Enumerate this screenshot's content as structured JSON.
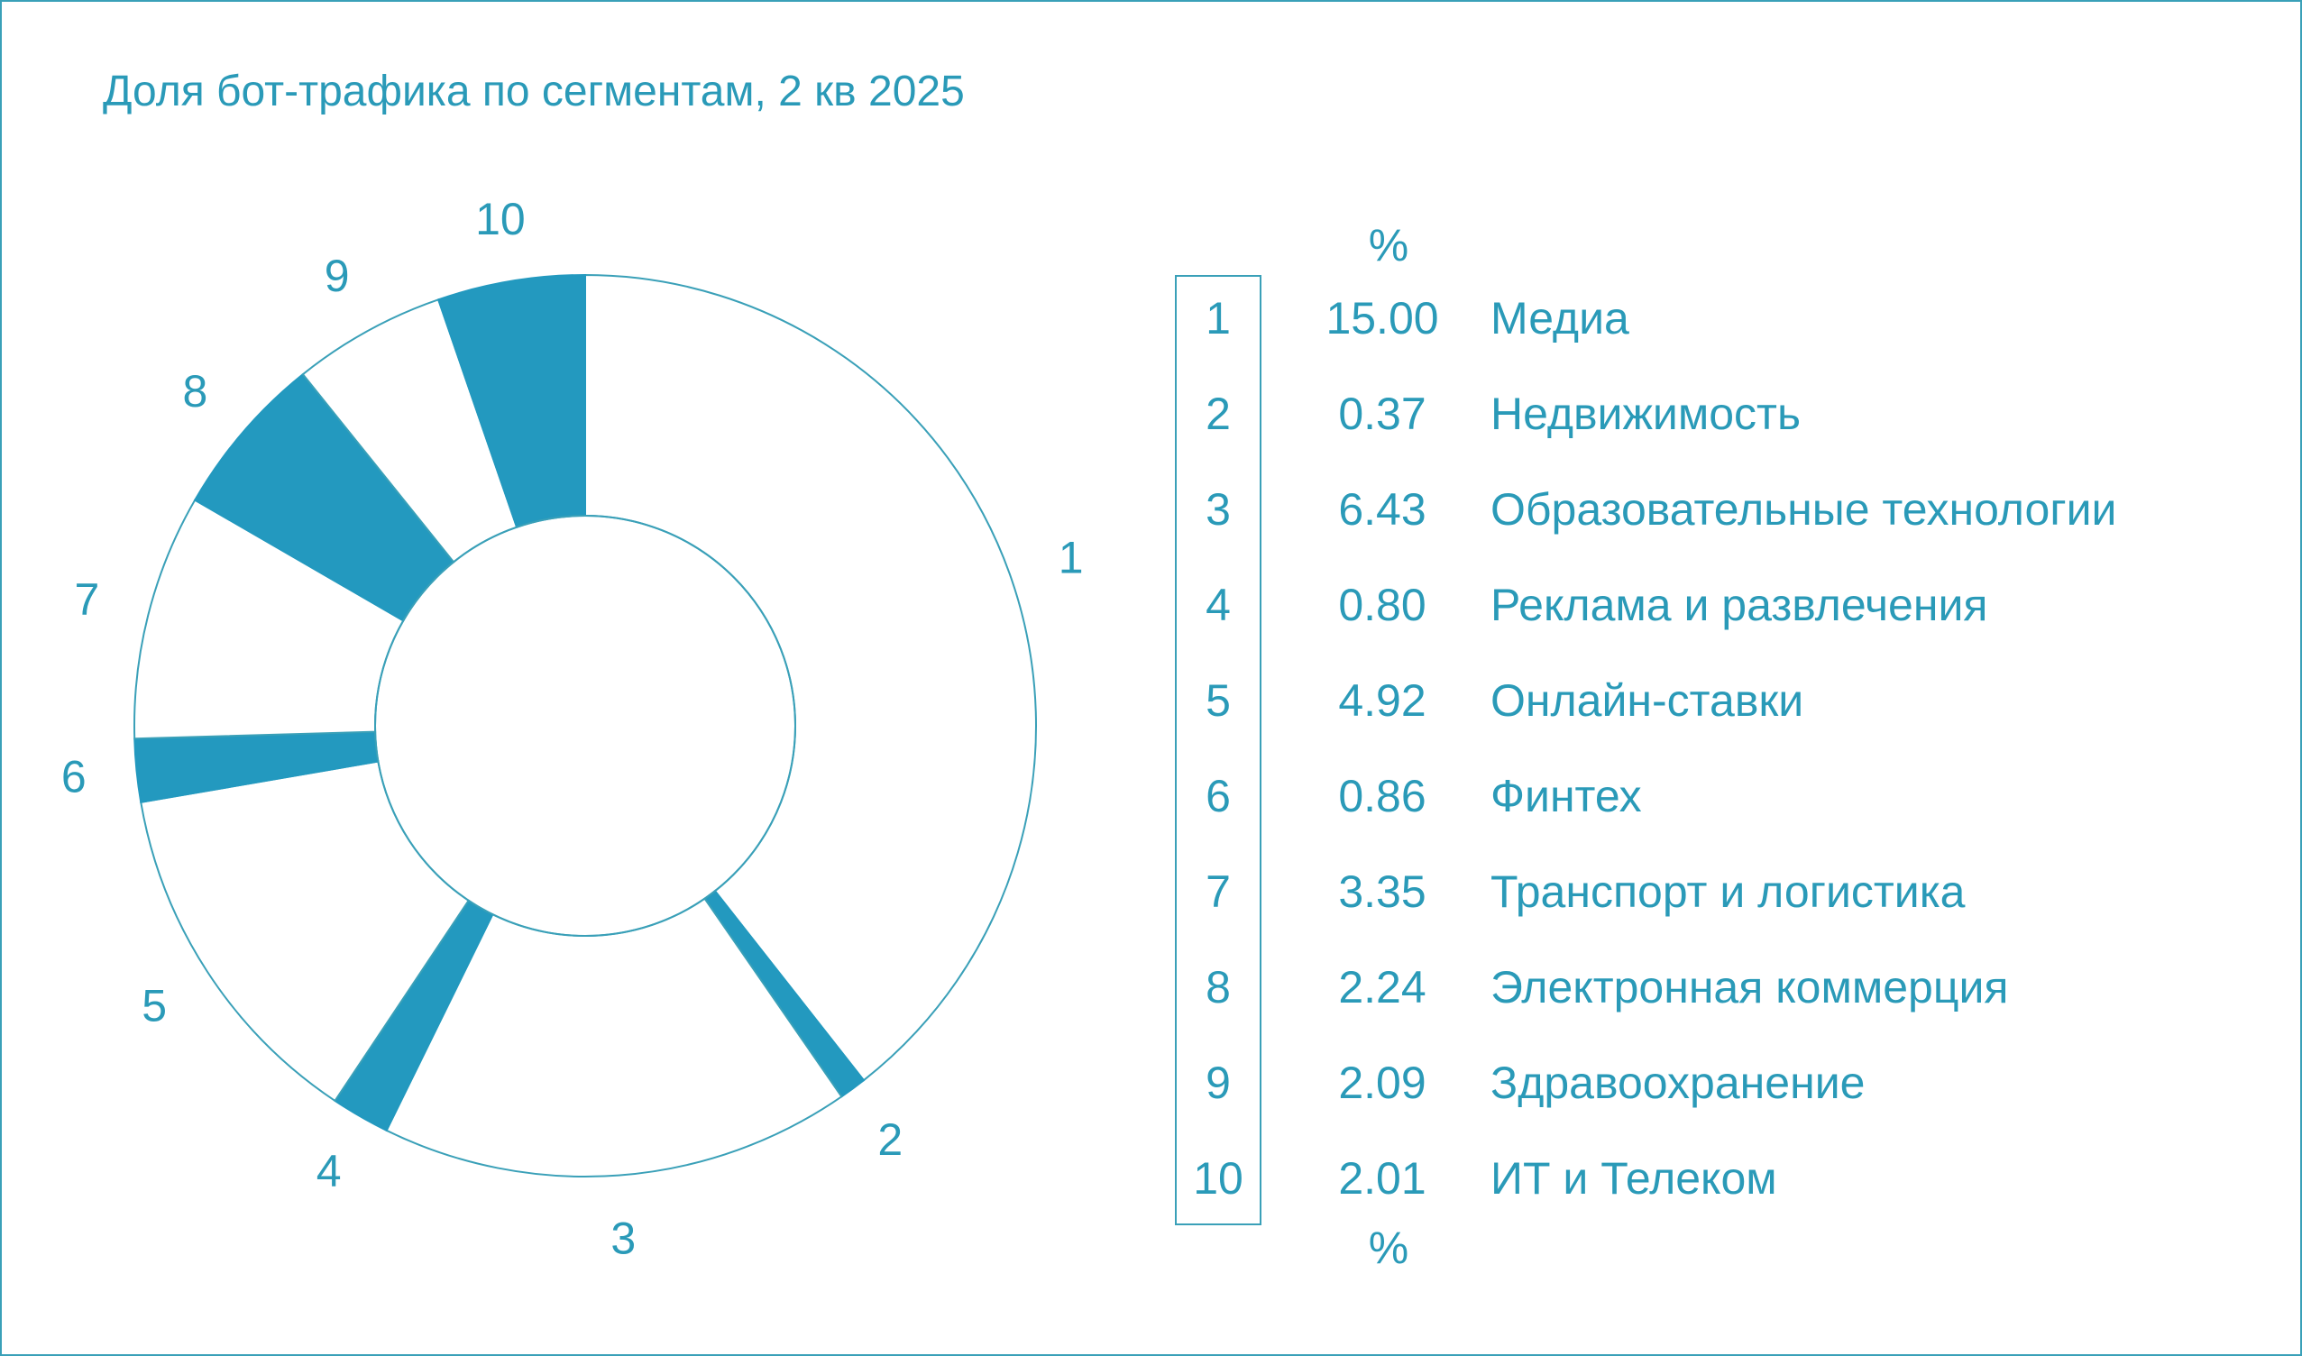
{
  "title": "Доля бот-трафика по сегментам, 2 кв 2025",
  "colors": {
    "accent": "#2399bf",
    "text": "#2a9ab8",
    "stroke": "#3aa0b8",
    "background": "#ffffff"
  },
  "chart_data": {
    "type": "pie",
    "title": "Доля бот-трафика по сегментам, 2 кв 2025",
    "unit_label_top": "%",
    "unit_label_bottom": "%",
    "categories": [
      "1",
      "2",
      "3",
      "4",
      "5",
      "6",
      "7",
      "8",
      "9",
      "10"
    ],
    "series": [
      {
        "values": [
          15.0,
          0.37,
          6.43,
          0.8,
          4.92,
          0.86,
          3.35,
          2.24,
          2.09,
          2.01
        ],
        "value_labels": [
          "15.00",
          "0.37",
          "6.43",
          "0.80",
          "4.92",
          "0.86",
          "3.35",
          "2.24",
          "2.09",
          "2.01"
        ],
        "names": [
          "Медиа",
          "Недвижимость",
          "Образовательные технологии",
          "Реклама и развлечения",
          "Онлайн-ставки",
          "Финтех",
          "Транспорт и логистика",
          "Электронная коммерция",
          "Здравоохранение",
          "ИТ и Телеком"
        ],
        "fills": [
          "white",
          "accent",
          "white",
          "accent",
          "white",
          "accent",
          "white",
          "accent",
          "white",
          "accent"
        ]
      }
    ],
    "donut": true,
    "start_angle": "top",
    "direction": "clockwise",
    "legend_placement": "right"
  }
}
